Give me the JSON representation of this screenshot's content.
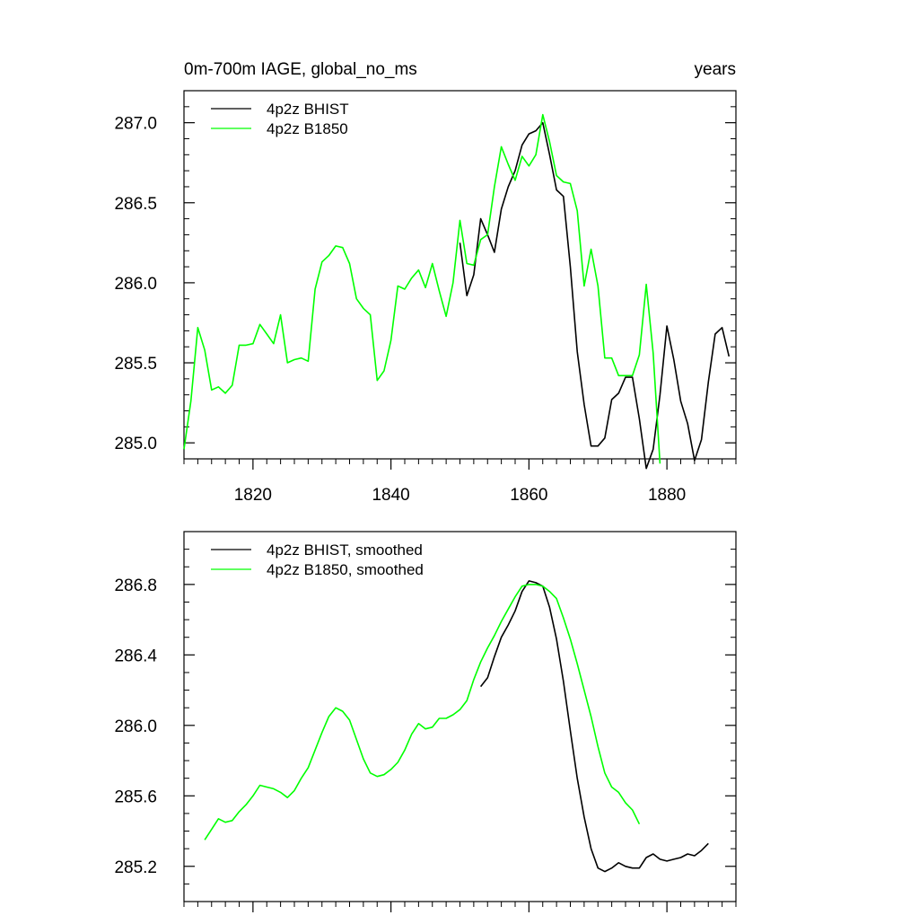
{
  "chart_data": [
    {
      "type": "line",
      "title_left": "0m-700m IAGE, global_no_ms",
      "title_right": "years",
      "xlim": [
        1810,
        1890
      ],
      "ylim": [
        284.9,
        287.2
      ],
      "xticks": [
        1820,
        1840,
        1860,
        1880
      ],
      "xtick_labels": [
        "1820",
        "1840",
        "1860",
        "1880"
      ],
      "xminor_step": 2,
      "yticks": [
        285.0,
        285.5,
        286.0,
        286.5,
        287.0
      ],
      "ytick_labels": [
        "285.0",
        "285.5",
        "286.0",
        "286.5",
        "287.0"
      ],
      "yminor_step": 0.1,
      "legend_location": "top-left",
      "series": [
        {
          "name": "4p2z BHIST",
          "color": "#000000",
          "x": [
            1850,
            1851,
            1852,
            1853,
            1854,
            1855,
            1856,
            1857,
            1858,
            1859,
            1860,
            1861,
            1862,
            1863,
            1864,
            1865,
            1866,
            1867,
            1868,
            1869,
            1870,
            1871,
            1872,
            1873,
            1874,
            1875,
            1876,
            1877,
            1878,
            1879,
            1880,
            1881,
            1882,
            1883,
            1884,
            1885,
            1886,
            1887,
            1888,
            1889
          ],
          "values": [
            286.25,
            285.92,
            286.05,
            286.4,
            286.3,
            286.19,
            286.46,
            286.6,
            286.7,
            286.86,
            286.93,
            286.95,
            287.0,
            286.8,
            286.58,
            286.54,
            286.1,
            285.57,
            285.24,
            284.98,
            284.98,
            285.03,
            285.27,
            285.31,
            285.41,
            285.41,
            285.15,
            284.84,
            284.96,
            285.3,
            285.73,
            285.52,
            285.26,
            285.12,
            284.89,
            285.02,
            285.38,
            285.68,
            285.72,
            285.54
          ]
        },
        {
          "name": "4p2z B1850",
          "color": "#00ff00",
          "x": [
            1810,
            1811,
            1812,
            1813,
            1814,
            1815,
            1816,
            1817,
            1818,
            1819,
            1820,
            1821,
            1822,
            1823,
            1824,
            1825,
            1826,
            1827,
            1828,
            1829,
            1830,
            1831,
            1832,
            1833,
            1834,
            1835,
            1836,
            1837,
            1838,
            1839,
            1840,
            1841,
            1842,
            1843,
            1844,
            1845,
            1846,
            1847,
            1848,
            1849,
            1850,
            1851,
            1852,
            1853,
            1854,
            1855,
            1856,
            1857,
            1858,
            1859,
            1860,
            1861,
            1862,
            1863,
            1864,
            1865,
            1866,
            1867,
            1868,
            1869,
            1870,
            1871,
            1872,
            1873,
            1874,
            1875,
            1876,
            1877,
            1878,
            1879
          ],
          "values": [
            284.96,
            285.26,
            285.72,
            285.58,
            285.33,
            285.35,
            285.31,
            285.36,
            285.61,
            285.61,
            285.62,
            285.74,
            285.68,
            285.62,
            285.8,
            285.5,
            285.52,
            285.53,
            285.51,
            285.96,
            286.13,
            286.17,
            286.23,
            286.22,
            286.12,
            285.9,
            285.84,
            285.8,
            285.39,
            285.45,
            285.64,
            285.98,
            285.96,
            286.03,
            286.08,
            285.97,
            286.12,
            285.95,
            285.79,
            286.0,
            286.39,
            286.12,
            286.11,
            286.27,
            286.3,
            286.6,
            286.85,
            286.74,
            286.64,
            286.79,
            286.73,
            286.8,
            287.05,
            286.88,
            286.67,
            286.63,
            286.62,
            286.45,
            285.98,
            286.21,
            285.98,
            285.53,
            285.53,
            285.42,
            285.42,
            285.42,
            285.55,
            285.99,
            285.56,
            284.87
          ]
        }
      ]
    },
    {
      "type": "line",
      "xlim": [
        1810,
        1890
      ],
      "ylim": [
        285.0,
        287.1
      ],
      "xticks": [
        1820,
        1840,
        1860,
        1880
      ],
      "xminor_step": 2,
      "yticks": [
        285.2,
        285.6,
        286.0,
        286.4,
        286.8
      ],
      "ytick_labels": [
        "285.2",
        "285.6",
        "286.0",
        "286.4",
        "286.8"
      ],
      "yminor_step": 0.1,
      "legend_location": "top-left",
      "series": [
        {
          "name": "4p2z BHIST, smoothed",
          "color": "#000000",
          "x": [
            1853,
            1854,
            1855,
            1856,
            1857,
            1858,
            1859,
            1860,
            1861,
            1862,
            1863,
            1864,
            1865,
            1866,
            1867,
            1868,
            1869,
            1870,
            1871,
            1872,
            1873,
            1874,
            1875,
            1876,
            1877,
            1878,
            1879,
            1880,
            1881,
            1882,
            1883,
            1884,
            1885,
            1886
          ],
          "values": [
            286.22,
            286.27,
            286.39,
            286.5,
            286.57,
            286.65,
            286.76,
            286.82,
            286.81,
            286.79,
            286.67,
            286.49,
            286.25,
            285.97,
            285.7,
            285.48,
            285.3,
            285.19,
            285.17,
            285.19,
            285.22,
            285.2,
            285.19,
            285.19,
            285.25,
            285.27,
            285.24,
            285.23,
            285.24,
            285.25,
            285.27,
            285.26,
            285.29,
            285.33
          ]
        },
        {
          "name": "4p2z B1850, smoothed",
          "color": "#00ff00",
          "x": [
            1813,
            1814,
            1815,
            1816,
            1817,
            1818,
            1819,
            1820,
            1821,
            1822,
            1823,
            1824,
            1825,
            1826,
            1827,
            1828,
            1829,
            1830,
            1831,
            1832,
            1833,
            1834,
            1835,
            1836,
            1837,
            1838,
            1839,
            1840,
            1841,
            1842,
            1843,
            1844,
            1845,
            1846,
            1847,
            1848,
            1849,
            1850,
            1851,
            1852,
            1853,
            1854,
            1855,
            1856,
            1857,
            1858,
            1859,
            1860,
            1861,
            1862,
            1863,
            1864,
            1865,
            1866,
            1867,
            1868,
            1869,
            1870,
            1871,
            1872,
            1873,
            1874,
            1875,
            1876
          ],
          "values": [
            285.35,
            285.41,
            285.47,
            285.45,
            285.46,
            285.51,
            285.55,
            285.6,
            285.66,
            285.65,
            285.64,
            285.62,
            285.59,
            285.63,
            285.7,
            285.76,
            285.86,
            285.96,
            286.05,
            286.1,
            286.08,
            286.03,
            285.92,
            285.81,
            285.73,
            285.71,
            285.72,
            285.75,
            285.79,
            285.86,
            285.95,
            286.01,
            285.98,
            285.99,
            286.04,
            286.04,
            286.06,
            286.09,
            286.14,
            286.26,
            286.36,
            286.44,
            286.51,
            286.59,
            286.66,
            286.73,
            286.79,
            286.8,
            286.8,
            286.79,
            286.76,
            286.72,
            286.61,
            286.49,
            286.35,
            286.2,
            286.05,
            285.88,
            285.73,
            285.65,
            285.62,
            285.56,
            285.52,
            285.44
          ]
        }
      ]
    }
  ]
}
